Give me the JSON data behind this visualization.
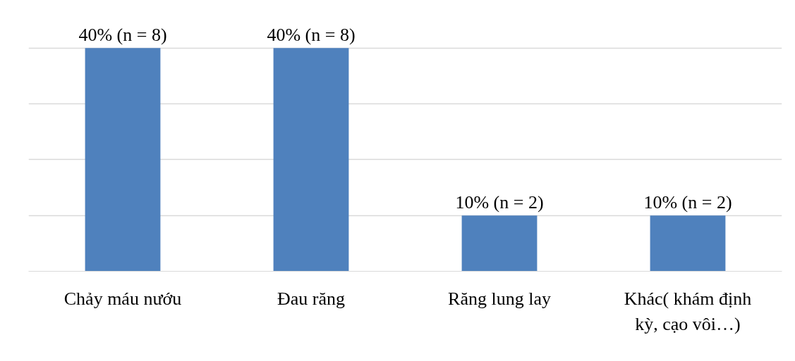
{
  "chart_data": {
    "type": "bar",
    "categories": [
      "Chảy máu nướu",
      "Đau răng",
      "Răng lung lay",
      "Khác( khám định kỳ, cạo vôi…)"
    ],
    "values": [
      40,
      40,
      10,
      10
    ],
    "value_labels": [
      "40% (n = 8)",
      "40% (n = 8)",
      "10% (n = 2)",
      "10% (n = 2)"
    ],
    "color": "#4f81bd",
    "grid": "y",
    "tick_labels": "x"
  }
}
